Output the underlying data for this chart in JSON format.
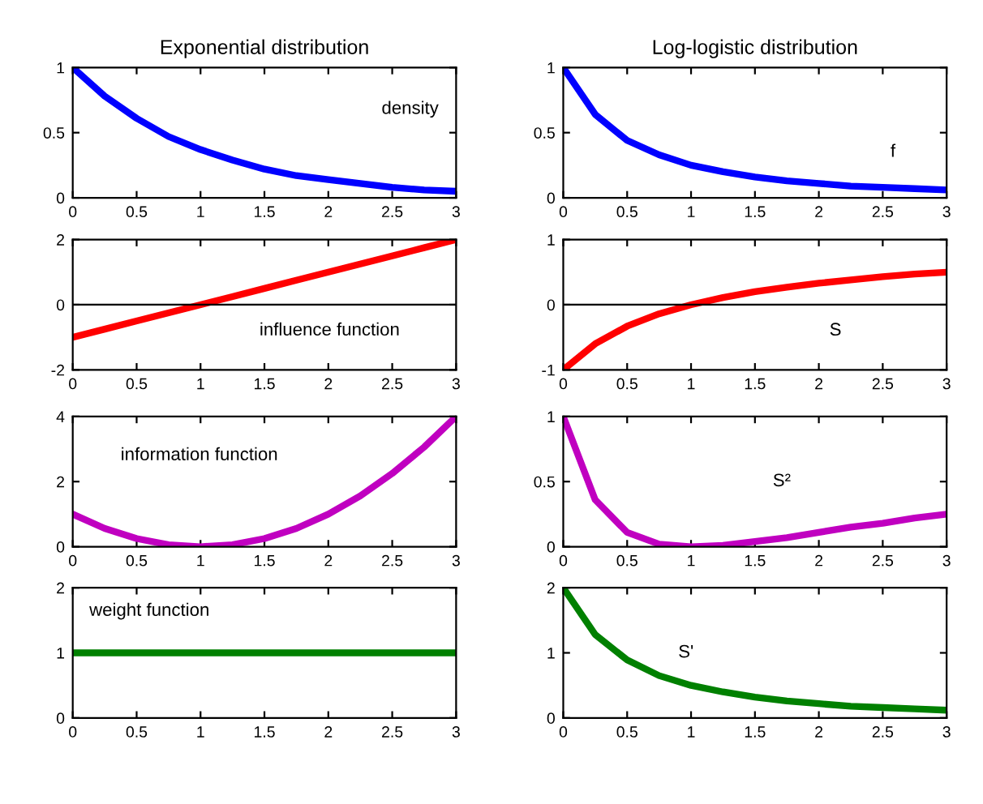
{
  "chart_data": [
    {
      "type": "line",
      "title": "Exponential distribution",
      "x": [
        0,
        0.25,
        0.5,
        0.75,
        1,
        1.25,
        1.5,
        1.75,
        2,
        2.25,
        2.5,
        2.75,
        3
      ],
      "series": [
        {
          "color": "#0000ff",
          "values": [
            1,
            0.78,
            0.61,
            0.47,
            0.37,
            0.29,
            0.22,
            0.17,
            0.14,
            0.11,
            0.08,
            0.06,
            0.05
          ]
        }
      ],
      "xlim": [
        0,
        3
      ],
      "xticks": [
        0,
        0.5,
        1,
        1.5,
        2,
        2.5,
        3
      ],
      "ylim": [
        0,
        1
      ],
      "yticks": [
        0,
        0.5,
        1
      ],
      "annotations": [
        "density"
      ],
      "grid": false,
      "legend": false
    },
    {
      "type": "line",
      "title": "Log-logistic distribution",
      "x": [
        0,
        0.25,
        0.5,
        0.75,
        1,
        1.25,
        1.5,
        1.75,
        2,
        2.25,
        2.5,
        2.75,
        3
      ],
      "series": [
        {
          "color": "#0000ff",
          "values": [
            1,
            0.64,
            0.44,
            0.33,
            0.25,
            0.2,
            0.16,
            0.13,
            0.11,
            0.09,
            0.08,
            0.07,
            0.06
          ]
        }
      ],
      "xlim": [
        0,
        3
      ],
      "xticks": [
        0,
        0.5,
        1,
        1.5,
        2,
        2.5,
        3
      ],
      "ylim": [
        0,
        1
      ],
      "yticks": [
        0,
        0.5,
        1
      ],
      "annotations": [
        "f"
      ],
      "grid": false,
      "legend": false
    },
    {
      "type": "line",
      "x": [
        0,
        0.25,
        0.5,
        0.75,
        1,
        1.25,
        1.5,
        1.75,
        2,
        2.25,
        2.5,
        2.75,
        3
      ],
      "series": [
        {
          "color": "#ff0000",
          "values": [
            -1,
            -0.75,
            -0.5,
            -0.25,
            0,
            0.25,
            0.5,
            0.75,
            1,
            1.25,
            1.5,
            1.75,
            2
          ]
        }
      ],
      "xlim": [
        0,
        3
      ],
      "xticks": [
        0,
        0.5,
        1,
        1.5,
        2,
        2.5,
        3
      ],
      "ylim": [
        -2,
        2
      ],
      "yticks": [
        -2,
        0,
        2
      ],
      "ref_lines": [
        {
          "axis": "y",
          "value": 0,
          "color": "#000000"
        }
      ],
      "annotations": [
        "influence function"
      ],
      "grid": false,
      "legend": false
    },
    {
      "type": "line",
      "x": [
        0,
        0.25,
        0.5,
        0.75,
        1,
        1.25,
        1.5,
        1.75,
        2,
        2.25,
        2.5,
        2.75,
        3
      ],
      "series": [
        {
          "color": "#ff0000",
          "values": [
            -1,
            -0.6,
            -0.33,
            -0.14,
            0,
            0.11,
            0.2,
            0.27,
            0.33,
            0.38,
            0.43,
            0.47,
            0.5
          ]
        }
      ],
      "xlim": [
        0,
        3
      ],
      "xticks": [
        0,
        0.5,
        1,
        1.5,
        2,
        2.5,
        3
      ],
      "ylim": [
        -1,
        1
      ],
      "yticks": [
        -1,
        0,
        1
      ],
      "ref_lines": [
        {
          "axis": "y",
          "value": 0,
          "color": "#000000"
        }
      ],
      "annotations": [
        "S"
      ],
      "grid": false,
      "legend": false
    },
    {
      "type": "line",
      "x": [
        0,
        0.25,
        0.5,
        0.75,
        1,
        1.25,
        1.5,
        1.75,
        2,
        2.25,
        2.5,
        2.75,
        3
      ],
      "series": [
        {
          "color": "#c000c0",
          "values": [
            1,
            0.56,
            0.25,
            0.06,
            0,
            0.06,
            0.25,
            0.56,
            1,
            1.56,
            2.25,
            3.06,
            4
          ]
        }
      ],
      "xlim": [
        0,
        3
      ],
      "xticks": [
        0,
        0.5,
        1,
        1.5,
        2,
        2.5,
        3
      ],
      "ylim": [
        0,
        4
      ],
      "yticks": [
        0,
        2,
        4
      ],
      "annotations": [
        "information function"
      ],
      "grid": false,
      "legend": false
    },
    {
      "type": "line",
      "x": [
        0,
        0.25,
        0.5,
        0.75,
        1,
        1.25,
        1.5,
        1.75,
        2,
        2.25,
        2.5,
        2.75,
        3
      ],
      "series": [
        {
          "color": "#c000c0",
          "values": [
            1,
            0.36,
            0.11,
            0.02,
            0,
            0.01,
            0.04,
            0.07,
            0.11,
            0.15,
            0.18,
            0.22,
            0.25
          ]
        }
      ],
      "xlim": [
        0,
        3
      ],
      "xticks": [
        0,
        0.5,
        1,
        1.5,
        2,
        2.5,
        3
      ],
      "ylim": [
        0,
        1
      ],
      "yticks": [
        0,
        0.5,
        1
      ],
      "annotations": [
        "S²"
      ],
      "grid": false,
      "legend": false
    },
    {
      "type": "line",
      "x": [
        0,
        0.25,
        0.5,
        0.75,
        1,
        1.25,
        1.5,
        1.75,
        2,
        2.25,
        2.5,
        2.75,
        3
      ],
      "series": [
        {
          "color": "#008000",
          "values": [
            1,
            1,
            1,
            1,
            1,
            1,
            1,
            1,
            1,
            1,
            1,
            1,
            1
          ]
        }
      ],
      "xlim": [
        0,
        3
      ],
      "xticks": [
        0,
        0.5,
        1,
        1.5,
        2,
        2.5,
        3
      ],
      "ylim": [
        0,
        2
      ],
      "yticks": [
        0,
        1,
        2
      ],
      "annotations": [
        "weight function"
      ],
      "grid": false,
      "legend": false
    },
    {
      "type": "line",
      "x": [
        0,
        0.25,
        0.5,
        0.75,
        1,
        1.25,
        1.5,
        1.75,
        2,
        2.25,
        2.5,
        2.75,
        3
      ],
      "series": [
        {
          "color": "#008000",
          "values": [
            2,
            1.28,
            0.89,
            0.65,
            0.5,
            0.4,
            0.32,
            0.26,
            0.22,
            0.18,
            0.16,
            0.14,
            0.12
          ]
        }
      ],
      "xlim": [
        0,
        3
      ],
      "xticks": [
        0,
        0.5,
        1,
        1.5,
        2,
        2.5,
        3
      ],
      "ylim": [
        0,
        2
      ],
      "yticks": [
        0,
        1,
        2
      ],
      "annotations": [
        "S'"
      ],
      "grid": false,
      "legend": false
    }
  ]
}
